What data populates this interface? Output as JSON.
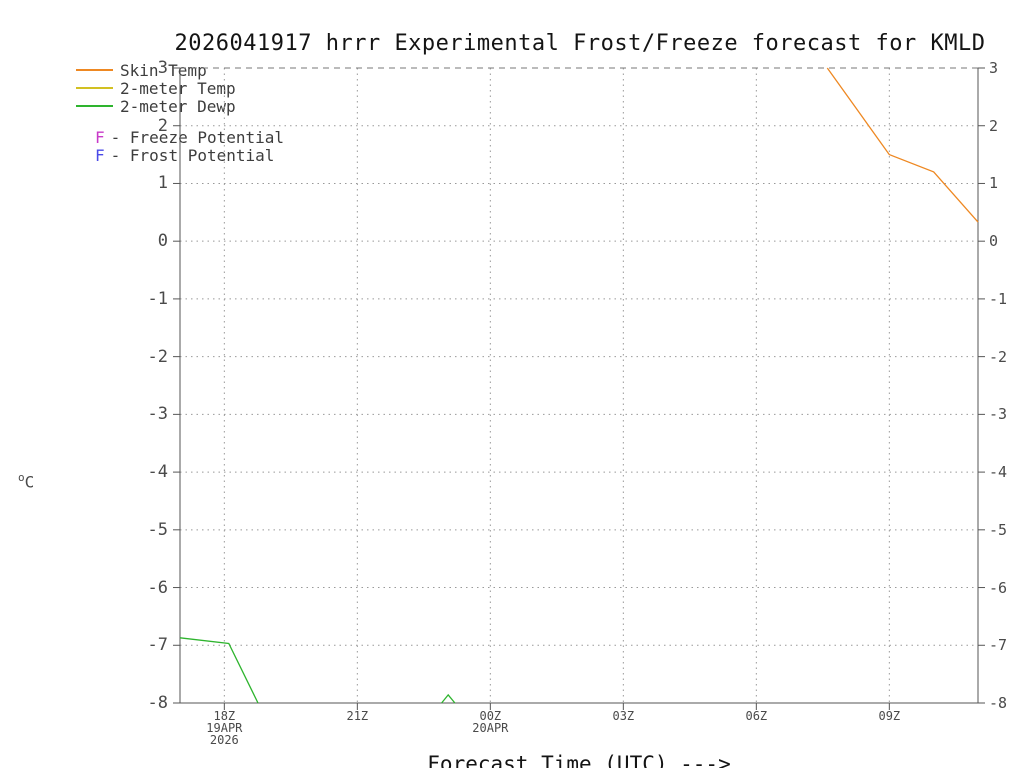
{
  "title": "2026041917 hrrr Experimental Frost/Freeze forecast for KMLD",
  "axes": {
    "y_label_sup": "o",
    "y_label_base": "C",
    "x_label": "Forecast Time (UTC) --->"
  },
  "legend": {
    "lines": [
      {
        "label": "Skin Temp",
        "color": "#ee8822"
      },
      {
        "label": "2-meter Temp",
        "color": "#d2c022"
      },
      {
        "label": "2-meter Dewp",
        "color": "#2eb42e"
      }
    ],
    "flags": [
      {
        "symbol": "F",
        "color": "#c83ac8",
        "label": "- Freeze Potential"
      },
      {
        "symbol": "F",
        "color": "#4a4ae8",
        "label": "- Frost Potential"
      }
    ]
  },
  "chart_data": {
    "type": "line",
    "title": "2026041917 hrrr Experimental Frost/Freeze forecast for KMLD",
    "xlabel": "Forecast Time (UTC) --->",
    "ylabel": "°C",
    "ylim": [
      -8,
      3
    ],
    "x_hours_range": [
      17,
      35
    ],
    "grid": true,
    "legend_position": "top-left",
    "y_ticks": [
      3,
      2,
      1,
      0,
      -1,
      -2,
      -3,
      -4,
      -5,
      -6,
      -7,
      -8
    ],
    "x_ticks": [
      {
        "hour": 18,
        "label": "18Z",
        "sub": [
          "19APR",
          "2026"
        ]
      },
      {
        "hour": 21,
        "label": "21Z",
        "sub": []
      },
      {
        "hour": 24,
        "label": "00Z",
        "sub": [
          "20APR"
        ]
      },
      {
        "hour": 27,
        "label": "03Z",
        "sub": []
      },
      {
        "hour": 30,
        "label": "06Z",
        "sub": []
      },
      {
        "hour": 33,
        "label": "09Z",
        "sub": []
      }
    ],
    "series": [
      {
        "name": "Skin Temp",
        "color": "#ee8822",
        "segments": [
          [
            [
              31.6,
              3.0
            ],
            [
              32.3,
              2.25
            ],
            [
              33.0,
              1.5
            ],
            [
              34.0,
              1.2
            ],
            [
              35.0,
              0.33
            ]
          ]
        ]
      },
      {
        "name": "2-meter Temp",
        "color": "#d2c022",
        "segments": []
      },
      {
        "name": "2-meter Dewp",
        "color": "#2eb42e",
        "segments": [
          [
            [
              17.0,
              -6.87
            ],
            [
              18.1,
              -6.97
            ],
            [
              18.76,
              -8.0
            ]
          ],
          [
            [
              22.9,
              -8.0
            ],
            [
              23.05,
              -7.86
            ],
            [
              23.2,
              -8.0
            ]
          ]
        ]
      }
    ]
  }
}
